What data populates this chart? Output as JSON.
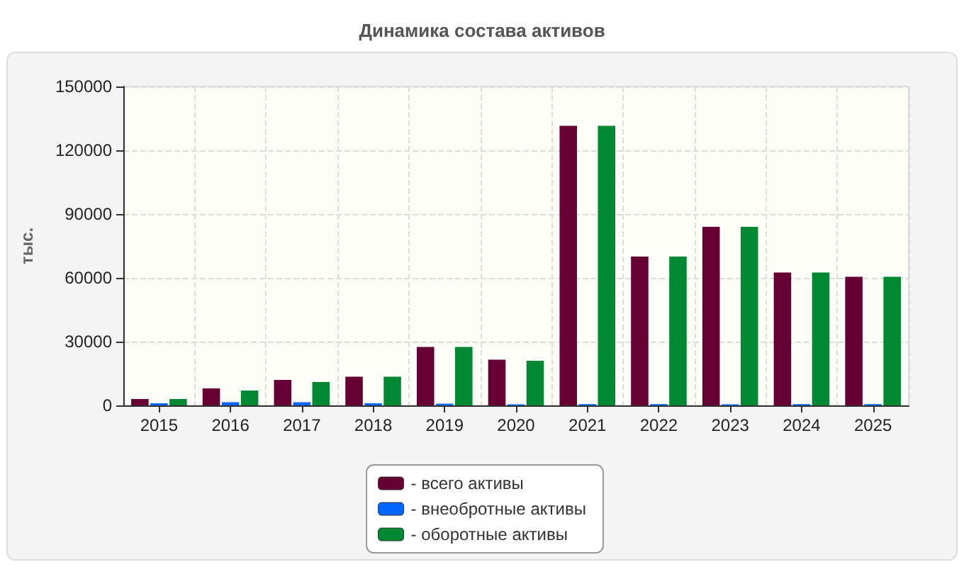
{
  "chart_data": {
    "type": "bar",
    "title": "Динамика состава активов",
    "ylabel": "тыс.",
    "categories": [
      "2015",
      "2016",
      "2017",
      "2018",
      "2019",
      "2020",
      "2021",
      "2022",
      "2023",
      "2024",
      "2025"
    ],
    "series": [
      {
        "name": "- всего активы",
        "color": "#660033",
        "values": [
          3000,
          8000,
          12000,
          13500,
          27500,
          21500,
          131500,
          70000,
          84000,
          62500,
          60500
        ]
      },
      {
        "name": "- внеобротные активы",
        "color": "#0066ff",
        "values": [
          1000,
          1500,
          1500,
          1000,
          800,
          500,
          600,
          600,
          500,
          600,
          600
        ]
      },
      {
        "name": "- оборотные активы",
        "color": "#008833",
        "values": [
          3000,
          7000,
          11000,
          13500,
          27500,
          21000,
          131500,
          70000,
          84000,
          62500,
          60500
        ]
      }
    ],
    "ylim": [
      0,
      150000
    ],
    "yticks": [
      0,
      30000,
      60000,
      90000,
      120000,
      150000
    ],
    "grid": true,
    "legend": "bottom"
  }
}
